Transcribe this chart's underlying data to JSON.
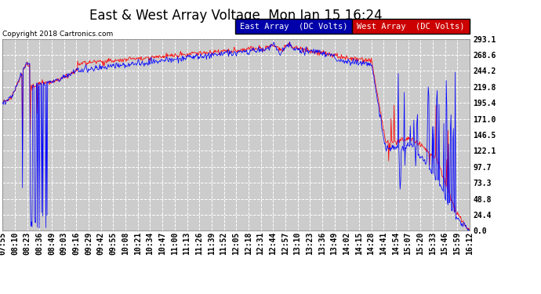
{
  "title": "East & West Array Voltage  Mon Jan 15 16:24",
  "copyright": "Copyright 2018 Cartronics.com",
  "legend_east": "East Array  (DC Volts)",
  "legend_west": "West Array  (DC Volts)",
  "east_color": "#0000ff",
  "west_color": "#ff0000",
  "legend_east_bg": "#0000aa",
  "legend_west_bg": "#cc0000",
  "background_color": "#ffffff",
  "plot_bg_color": "#cccccc",
  "grid_color": "#ffffff",
  "ylim": [
    0.0,
    293.1
  ],
  "yticks": [
    0.0,
    24.4,
    48.8,
    73.3,
    97.7,
    122.1,
    146.5,
    171.0,
    195.4,
    219.8,
    244.2,
    268.6,
    293.1
  ],
  "xtick_labels": [
    "07:55",
    "08:10",
    "08:23",
    "08:36",
    "08:49",
    "09:03",
    "09:16",
    "09:29",
    "09:42",
    "09:55",
    "10:08",
    "10:21",
    "10:34",
    "10:47",
    "11:00",
    "11:13",
    "11:26",
    "11:39",
    "11:52",
    "12:05",
    "12:18",
    "12:31",
    "12:44",
    "12:57",
    "13:10",
    "13:23",
    "13:36",
    "13:49",
    "14:02",
    "14:15",
    "14:28",
    "14:41",
    "14:54",
    "15:07",
    "15:20",
    "15:33",
    "15:46",
    "15:59",
    "16:12"
  ],
  "title_fontsize": 12,
  "copyright_fontsize": 6.5,
  "tick_fontsize": 7,
  "legend_fontsize": 7.5
}
